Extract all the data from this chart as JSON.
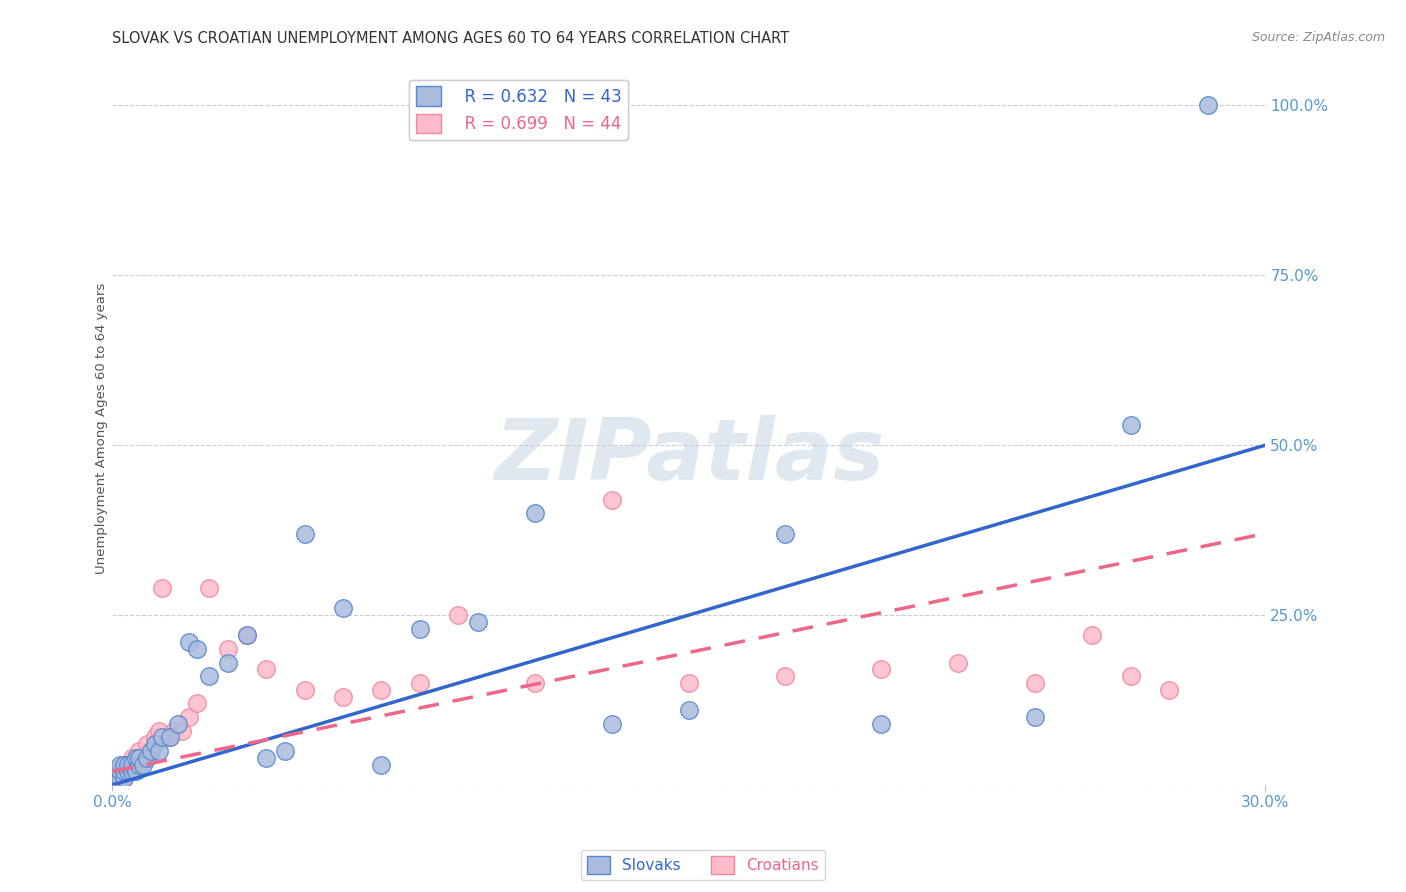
{
  "title": "SLOVAK VS CROATIAN UNEMPLOYMENT AMONG AGES 60 TO 64 YEARS CORRELATION CHART",
  "source": "Source: ZipAtlas.com",
  "ylabel": "Unemployment Among Ages 60 to 64 years",
  "xlim": [
    0.0,
    0.3
  ],
  "ylim": [
    0.0,
    1.05
  ],
  "x_tick_vals": [
    0.0,
    0.3
  ],
  "x_tick_labels": [
    "0.0%",
    "30.0%"
  ],
  "y_ticks_right": [
    0.25,
    0.5,
    0.75,
    1.0
  ],
  "y_tick_labels_right": [
    "25.0%",
    "50.0%",
    "75.0%",
    "100.0%"
  ],
  "slovak_fill_color": "#AABBDD",
  "slovak_edge_color": "#5588CC",
  "croatian_fill_color": "#FFBBCC",
  "croatian_edge_color": "#EE8899",
  "slovak_line_color": "#3366CC",
  "croatian_line_color": "#EE6688",
  "legend_R_slovak": "R = 0.632",
  "legend_N_slovak": "N = 43",
  "legend_R_croatian": "R = 0.699",
  "legend_N_croatian": "N = 44",
  "watermark": "ZIPatlas",
  "watermark_color": "#BBCCDD",
  "background_color": "#FFFFFF",
  "grid_color": "#CCCCDD",
  "title_color": "#333333",
  "axis_label_color": "#5599CC",
  "slovak_points_x": [
    0.001,
    0.002,
    0.002,
    0.002,
    0.003,
    0.003,
    0.003,
    0.004,
    0.004,
    0.005,
    0.005,
    0.006,
    0.006,
    0.007,
    0.007,
    0.008,
    0.009,
    0.01,
    0.011,
    0.012,
    0.013,
    0.015,
    0.017,
    0.02,
    0.022,
    0.025,
    0.03,
    0.035,
    0.04,
    0.045,
    0.05,
    0.06,
    0.07,
    0.08,
    0.095,
    0.11,
    0.13,
    0.15,
    0.175,
    0.2,
    0.24,
    0.265,
    0.285
  ],
  "slovak_points_y": [
    0.01,
    0.01,
    0.02,
    0.03,
    0.01,
    0.02,
    0.03,
    0.02,
    0.03,
    0.02,
    0.03,
    0.02,
    0.04,
    0.03,
    0.04,
    0.03,
    0.04,
    0.05,
    0.06,
    0.05,
    0.07,
    0.07,
    0.09,
    0.21,
    0.2,
    0.16,
    0.18,
    0.22,
    0.04,
    0.05,
    0.37,
    0.26,
    0.03,
    0.23,
    0.24,
    0.4,
    0.09,
    0.11,
    0.37,
    0.09,
    0.1,
    0.53,
    1.0
  ],
  "croatian_points_x": [
    0.001,
    0.002,
    0.002,
    0.003,
    0.003,
    0.003,
    0.004,
    0.004,
    0.005,
    0.005,
    0.006,
    0.006,
    0.007,
    0.007,
    0.008,
    0.009,
    0.01,
    0.011,
    0.012,
    0.013,
    0.015,
    0.016,
    0.018,
    0.02,
    0.022,
    0.025,
    0.03,
    0.035,
    0.04,
    0.05,
    0.06,
    0.07,
    0.08,
    0.09,
    0.11,
    0.13,
    0.15,
    0.175,
    0.2,
    0.22,
    0.24,
    0.255,
    0.265,
    0.275
  ],
  "croatian_points_y": [
    0.01,
    0.01,
    0.02,
    0.01,
    0.02,
    0.03,
    0.02,
    0.03,
    0.02,
    0.04,
    0.03,
    0.04,
    0.03,
    0.05,
    0.04,
    0.06,
    0.05,
    0.07,
    0.08,
    0.29,
    0.07,
    0.08,
    0.08,
    0.1,
    0.12,
    0.29,
    0.2,
    0.22,
    0.17,
    0.14,
    0.13,
    0.14,
    0.15,
    0.25,
    0.15,
    0.42,
    0.15,
    0.16,
    0.17,
    0.18,
    0.15,
    0.22,
    0.16,
    0.14
  ],
  "slovak_line_x0": 0.0,
  "slovak_line_y0": 0.0,
  "slovak_line_x1": 0.3,
  "slovak_line_y1": 0.5,
  "croatian_line_x0": 0.0,
  "croatian_line_y0": 0.02,
  "croatian_line_x1": 0.3,
  "croatian_line_y1": 0.37
}
